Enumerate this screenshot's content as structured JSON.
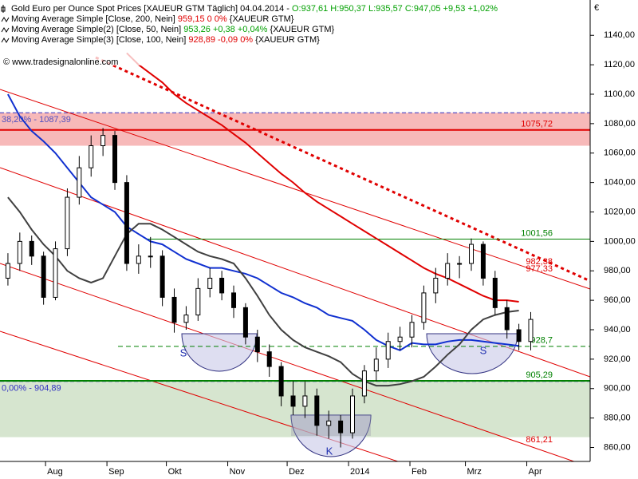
{
  "chart_data": {
    "type": "candlestick",
    "title": "Gold Euro per Ounce Spot Prices [XAUEUR GTM  Täglich] 04.04.2014 -",
    "title_values": "O:937,61 H:950,37 L:935,57 C:947,05 +9,53 +1,02%",
    "source": "www.tradesignalonline.com",
    "unit": "€",
    "up_color": "#ffffff",
    "down_color": "#000000",
    "x": [
      12,
      18,
      24,
      30,
      36,
      42,
      48,
      54,
      60,
      66,
      72,
      78,
      84,
      90,
      96,
      102,
      108,
      114,
      120,
      126,
      132,
      138,
      144,
      150,
      156,
      162,
      168,
      174,
      180,
      186,
      192,
      198,
      204,
      210,
      216,
      222,
      228,
      234,
      240,
      246,
      252,
      258,
      264,
      270,
      276
    ],
    "open": [
      975,
      985,
      1000,
      990,
      962,
      995,
      1030,
      1050,
      1065,
      1072,
      1040,
      985,
      990,
      990,
      962,
      945,
      950,
      968,
      975,
      965,
      955,
      935,
      925,
      915,
      895,
      888,
      895,
      875,
      878,
      870,
      895,
      912,
      920,
      932,
      935,
      945,
      965,
      975,
      985,
      985,
      998,
      975,
      955,
      940,
      932
    ],
    "high": [
      992,
      1006,
      1004,
      993,
      1000,
      1036,
      1058,
      1072,
      1077,
      1075,
      1045,
      998,
      1003,
      994,
      968,
      956,
      975,
      982,
      980,
      970,
      958,
      940,
      930,
      918,
      905,
      905,
      900,
      885,
      882,
      900,
      916,
      928,
      938,
      942,
      950,
      970,
      982,
      992,
      990,
      1002,
      1000,
      980,
      960,
      944,
      952
    ],
    "low": [
      970,
      980,
      984,
      957,
      960,
      990,
      1025,
      1044,
      1058,
      1035,
      980,
      978,
      982,
      956,
      938,
      940,
      946,
      962,
      960,
      948,
      930,
      918,
      908,
      888,
      882,
      880,
      868,
      866,
      860,
      866,
      890,
      905,
      914,
      926,
      928,
      940,
      958,
      970,
      975,
      980,
      970,
      950,
      934,
      926,
      926
    ],
    "close": [
      985,
      1000,
      990,
      962,
      995,
      1030,
      1050,
      1065,
      1072,
      1040,
      985,
      990,
      990,
      962,
      945,
      950,
      968,
      975,
      965,
      955,
      935,
      925,
      915,
      895,
      888,
      895,
      875,
      878,
      870,
      895,
      912,
      920,
      932,
      935,
      945,
      965,
      975,
      985,
      985,
      998,
      975,
      955,
      940,
      932,
      947
    ],
    "series": [
      {
        "name": "Moving Average Simple [Close, 200, Nein]",
        "value_text": "959,15 0 0%",
        "value_color": "#e00000",
        "tag": "{XAUEUR GTM}",
        "color": "#e00000",
        "values": [
          null,
          null,
          null,
          null,
          null,
          null,
          null,
          null,
          null,
          null,
          1128,
          1120,
          1114,
          1108,
          1100,
          1094,
          1089,
          1084,
          1079,
          1073,
          1067,
          1060,
          1053,
          1046,
          1040,
          1033,
          1027,
          1022,
          1017,
          1012,
          1007,
          1002,
          997,
          992,
          987,
          982,
          978,
          975,
          971,
          967,
          963,
          960,
          960,
          959,
          null
        ]
      },
      {
        "name": "Moving Average Simple(2) [Close, 50, Nein]",
        "value_text": "953,26 +0,38 +0,04%",
        "value_color": "#00a000",
        "tag": "{XAUEUR GTM}",
        "color": "#1030d0",
        "values": [
          1100,
          1085,
          1075,
          1068,
          1060,
          1050,
          1040,
          1030,
          1025,
          1020,
          1010,
          1005,
          1000,
          998,
          993,
          988,
          985,
          982,
          982,
          980,
          978,
          975,
          970,
          965,
          962,
          958,
          955,
          950,
          948,
          946,
          940,
          933,
          929,
          926,
          931,
          930,
          930,
          932,
          933,
          933,
          932,
          931,
          930,
          929,
          null
        ]
      },
      {
        "name": "Moving Average Simple(3) [Close, 100, Nein]",
        "value_text": "928,89 -0,09 0%",
        "value_color": "#e00000",
        "tag": "{XAUEUR GTM}",
        "color": "#404040",
        "values": [
          1030,
          1020,
          1008,
          998,
          990,
          980,
          975,
          972,
          975,
          990,
          1005,
          1012,
          1012,
          1008,
          1003,
          998,
          993,
          990,
          988,
          985,
          975,
          963,
          950,
          940,
          933,
          928,
          925,
          922,
          918,
          910,
          905,
          902,
          902,
          903,
          905,
          908,
          915,
          923,
          930,
          940,
          947,
          950,
          952,
          953,
          null
        ]
      }
    ],
    "levels": [
      {
        "value": 1075.72,
        "label": "1075,72",
        "color": "#e00000",
        "line": "solid"
      },
      {
        "value": 1001.56,
        "label": "1001,56",
        "color": "#008000",
        "line": "thin"
      },
      {
        "value": 982.38,
        "label": "982,38",
        "color": "#e00000",
        "line": "none"
      },
      {
        "value": 977.33,
        "label": "977,33",
        "color": "#e00000",
        "line": "none"
      },
      {
        "value": 928.7,
        "label": "928,7",
        "color": "#008000",
        "line": "dashed"
      },
      {
        "value": 905.29,
        "label": "905,29",
        "color": "#008000",
        "line": "solid"
      },
      {
        "value": 861.21,
        "label": "861,21",
        "color": "#e00000",
        "line": "none"
      }
    ],
    "bands": [
      {
        "from": 1087.39,
        "to": 1065,
        "color": "#f7b9b9",
        "label": "38,20% - 1087,39",
        "label_color": "#5050c0"
      },
      {
        "from": 904.89,
        "to": 867,
        "color": "#d6e5cf",
        "label": "0,00% - 904,89",
        "label_color": "#3030c0"
      }
    ],
    "annotations": [
      "S",
      "S",
      "K"
    ],
    "xlim": [
      8,
      306
    ],
    "xticks": [
      {
        "value": 31,
        "label": "Aug"
      },
      {
        "value": 62,
        "label": "Sep"
      },
      {
        "value": 92,
        "label": "Okt"
      },
      {
        "value": 123,
        "label": "Nov"
      },
      {
        "value": 153,
        "label": "Dez"
      },
      {
        "value": 184,
        "label": "2014"
      },
      {
        "value": 215,
        "label": "Feb"
      },
      {
        "value": 243,
        "label": "Mrz"
      },
      {
        "value": 274,
        "label": "Apr"
      }
    ],
    "ylim": [
      844,
      1164
    ],
    "yticks": [
      {
        "value": 860,
        "label": "860,00"
      },
      {
        "value": 880,
        "label": "880,00"
      },
      {
        "value": 900,
        "label": "900,00"
      },
      {
        "value": 920,
        "label": "920,00"
      },
      {
        "value": 940,
        "label": "940,00"
      },
      {
        "value": 960,
        "label": "960,00"
      },
      {
        "value": 980,
        "label": "980,00"
      },
      {
        "value": 1000,
        "label": "1000,00"
      },
      {
        "value": 1020,
        "label": "1020,00"
      },
      {
        "value": 1040,
        "label": "1040,00"
      },
      {
        "value": 1060,
        "label": "1060,00"
      },
      {
        "value": 1080,
        "label": "1080,00"
      },
      {
        "value": 1100,
        "label": "1100,00"
      },
      {
        "value": 1120,
        "label": "1120,00"
      },
      {
        "value": 1140,
        "label": "1140,00"
      }
    ]
  }
}
